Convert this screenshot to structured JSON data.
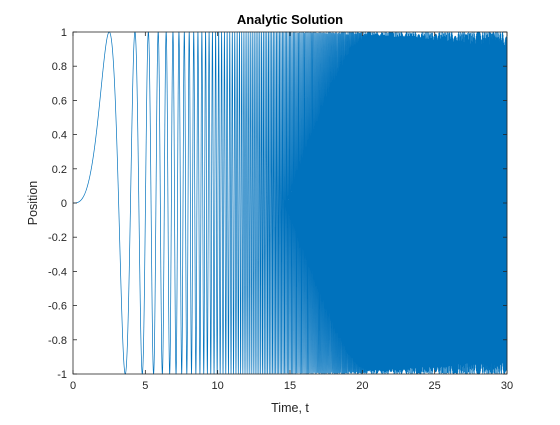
{
  "chart_data": {
    "type": "line",
    "title": "Analytic Solution",
    "xlabel": "Time, t",
    "ylabel": "Position",
    "xlim": [
      0,
      30
    ],
    "ylim": [
      -1,
      1
    ],
    "xticks": [
      0,
      5,
      10,
      15,
      20,
      25,
      30
    ],
    "yticks": [
      -1,
      -0.8,
      -0.6,
      -0.4,
      -0.2,
      0,
      0.2,
      0.4,
      0.6,
      0.8,
      1
    ],
    "xtick_labels": [
      "0",
      "5",
      "10",
      "15",
      "20",
      "25",
      "30"
    ],
    "ytick_labels": [
      "-1",
      "-0.8",
      "-0.6",
      "-0.4",
      "-0.2",
      "0",
      "0.2",
      "0.4",
      "0.6",
      "0.8",
      "1"
    ],
    "grid": false,
    "legend": "none",
    "series": [
      {
        "color": "#0072BD",
        "function": "sin(0.1 * t^3)",
        "t_range": [
          0,
          30
        ]
      }
    ]
  }
}
